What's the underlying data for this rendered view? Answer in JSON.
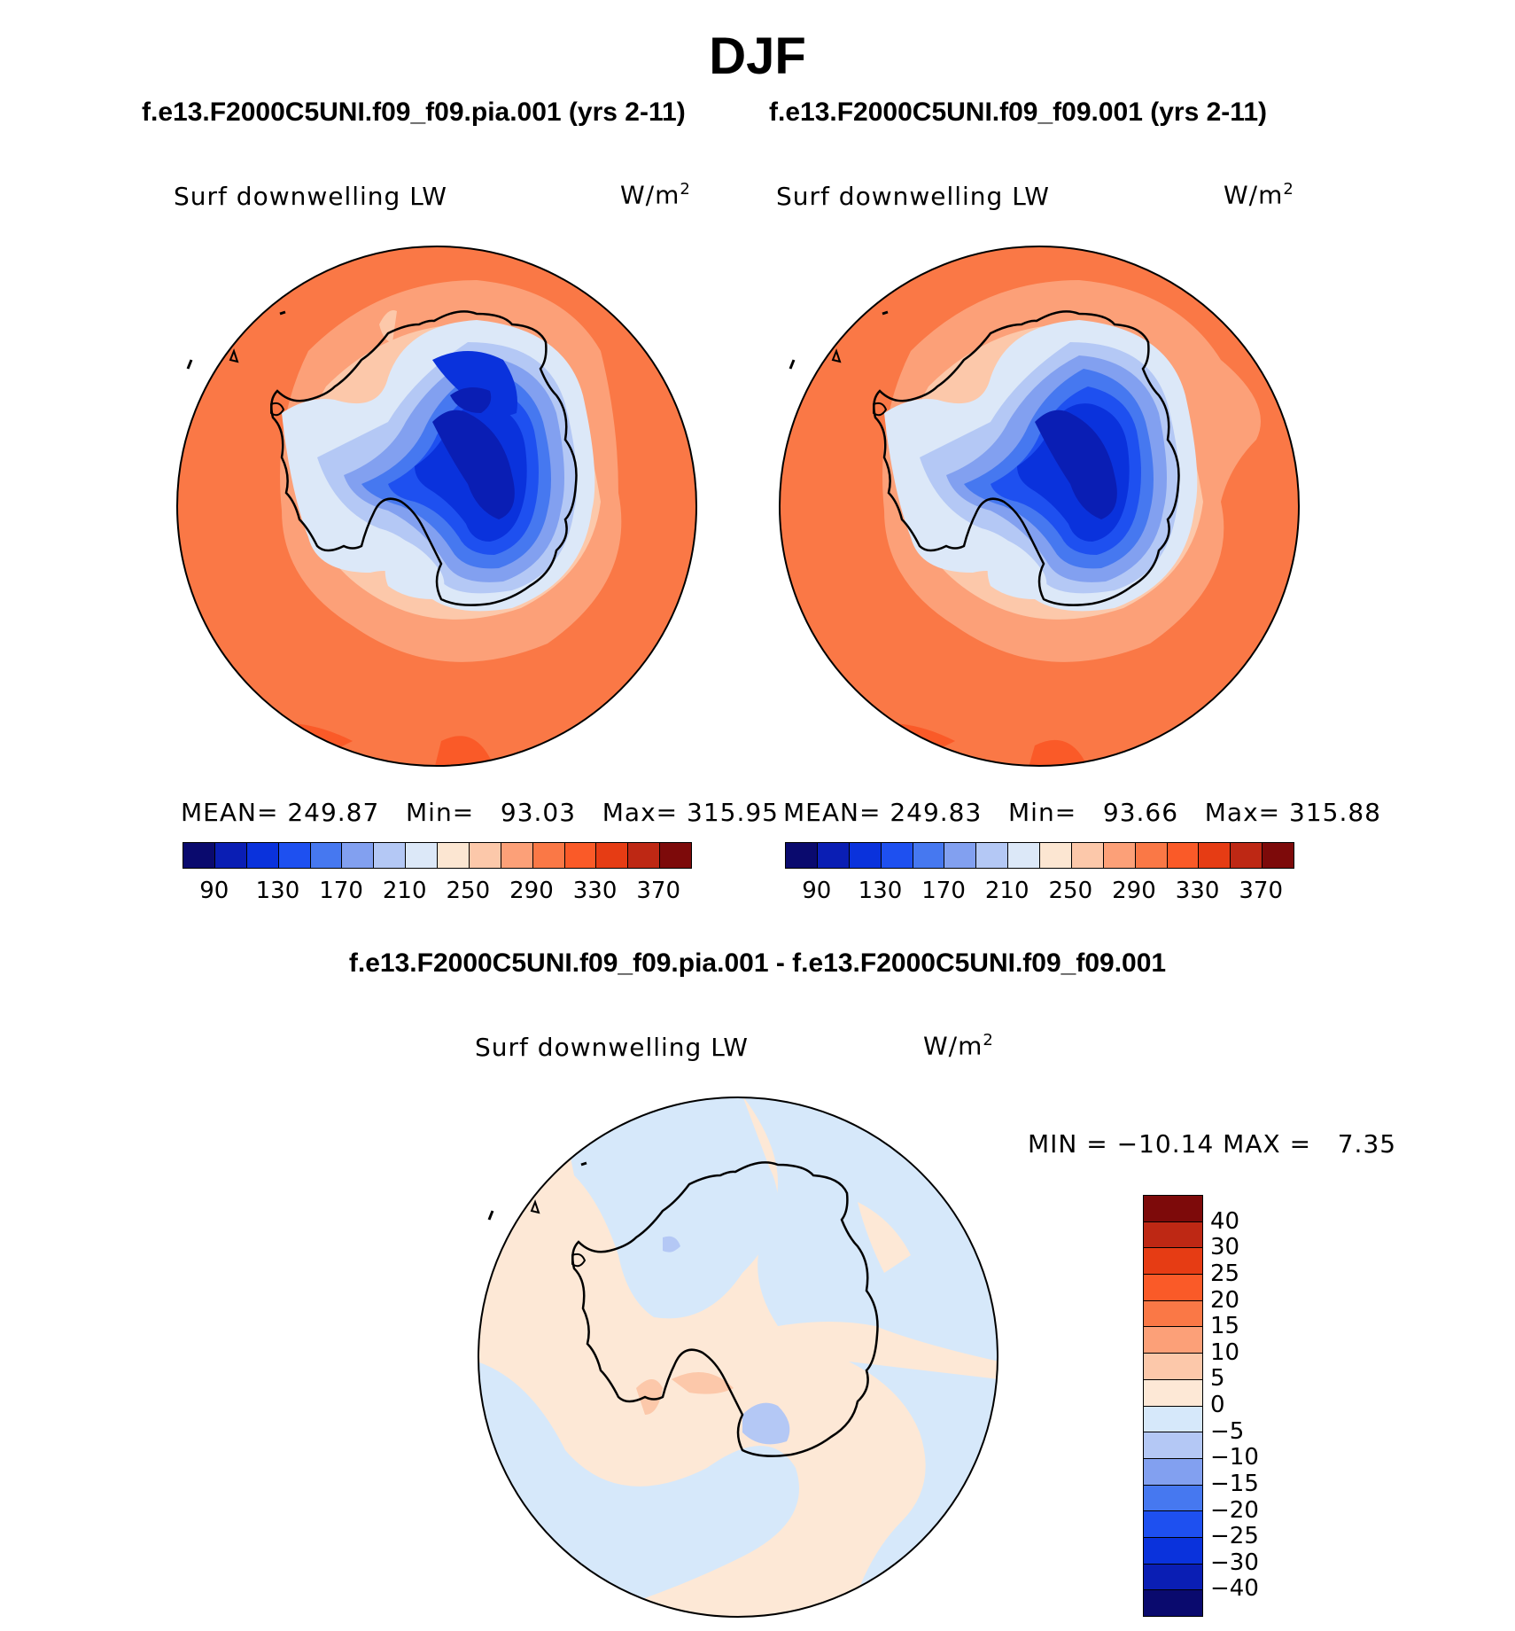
{
  "page": {
    "title": "DJF",
    "diff_title": "f.e13.F2000C5UNI.f09_f09.pia.001 - f.e13.F2000C5UNI.f09_f09.001"
  },
  "chart_data": [
    {
      "type": "heatmap",
      "projection": "south-polar-stereographic",
      "title": "f.e13.F2000C5UNI.f09_f09.pia.001 (yrs 2-11)",
      "variable": "Surf downwelling LW",
      "units": "W/m",
      "units_sup": "2",
      "stats": {
        "mean_label": "MEAN=",
        "mean": "249.87",
        "min_label": "Min=",
        "min": "93.03",
        "max_label": "Max=",
        "max": "315.95"
      },
      "colorbar": {
        "orientation": "horizontal",
        "ticks": [
          "90",
          "130",
          "170",
          "210",
          "250",
          "290",
          "330",
          "370"
        ],
        "colors": [
          "#0a0a6e",
          "#0a1eb4",
          "#0a32dc",
          "#1e50f0",
          "#4678f0",
          "#82a0f0",
          "#b4c8f5",
          "#dce8f8",
          "#fce6d2",
          "#fcc8aa",
          "#fca078",
          "#fa7846",
          "#fa5a28",
          "#e63c14",
          "#be2814",
          "#7d0a0a"
        ]
      }
    },
    {
      "type": "heatmap",
      "projection": "south-polar-stereographic",
      "title": "f.e13.F2000C5UNI.f09_f09.001 (yrs 2-11)",
      "variable": "Surf downwelling LW",
      "units": "W/m",
      "units_sup": "2",
      "stats": {
        "mean_label": "MEAN=",
        "mean": "249.83",
        "min_label": "Min=",
        "min": "93.66",
        "max_label": "Max=",
        "max": "315.88"
      },
      "colorbar": {
        "orientation": "horizontal",
        "ticks": [
          "90",
          "130",
          "170",
          "210",
          "250",
          "290",
          "330",
          "370"
        ],
        "colors": [
          "#0a0a6e",
          "#0a1eb4",
          "#0a32dc",
          "#1e50f0",
          "#4678f0",
          "#82a0f0",
          "#b4c8f5",
          "#dce8f8",
          "#fce6d2",
          "#fcc8aa",
          "#fca078",
          "#fa7846",
          "#fa5a28",
          "#e63c14",
          "#be2814",
          "#7d0a0a"
        ]
      }
    },
    {
      "type": "heatmap",
      "projection": "south-polar-stereographic",
      "variable": "Surf downwelling LW",
      "units": "W/m",
      "units_sup": "2",
      "stats": {
        "min_label": "MIN =",
        "min": "−10.14",
        "max_label": "MAX =",
        "max": "7.35"
      },
      "colorbar": {
        "orientation": "vertical",
        "ticks": [
          "40",
          "30",
          "25",
          "20",
          "15",
          "10",
          "5",
          "0",
          "−5",
          "−10",
          "−15",
          "−20",
          "−25",
          "−30",
          "−40"
        ],
        "colors": [
          "#7d0a0a",
          "#be2814",
          "#e63c14",
          "#fa5a28",
          "#fa7846",
          "#fca078",
          "#fcc8aa",
          "#fde8d6",
          "#d6e8fa",
          "#b4c8f5",
          "#82a0f0",
          "#4678f0",
          "#1e50f0",
          "#0a32dc",
          "#0a1eb4",
          "#0a0a6e"
        ]
      }
    }
  ]
}
